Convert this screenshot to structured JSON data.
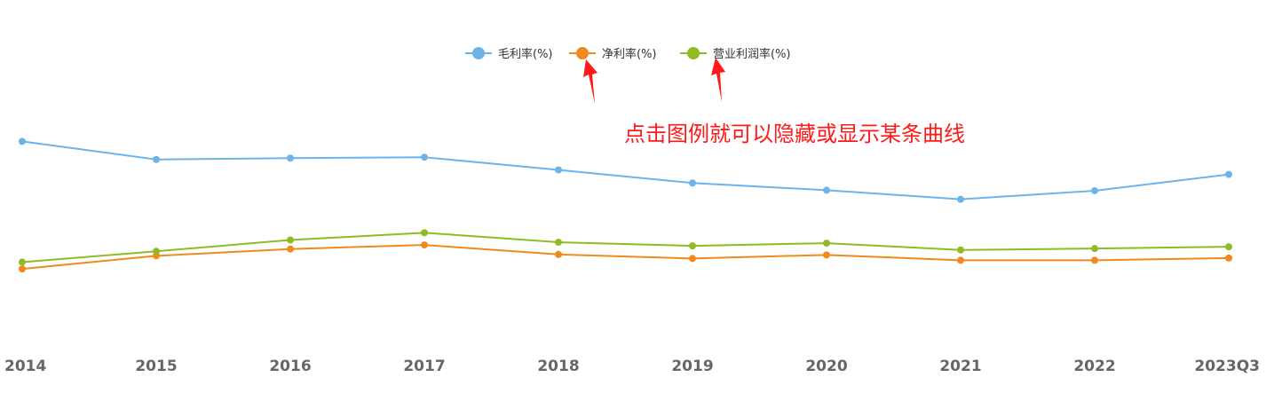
{
  "chart_data": {
    "type": "line",
    "categories": [
      "2014",
      "2015",
      "2016",
      "2017",
      "2018",
      "2019",
      "2020",
      "2021",
      "2022",
      "2023Q3"
    ],
    "series": [
      {
        "name": "毛利率(%)",
        "color": "#6cb4ea",
        "values": [
          42.5,
          38.5,
          38.8,
          39.0,
          36.2,
          33.3,
          31.7,
          29.7,
          31.6,
          35.2
        ]
      },
      {
        "name": "净利率(%)",
        "color": "#f08a1e",
        "values": [
          14.3,
          17.2,
          18.7,
          19.6,
          17.5,
          16.6,
          17.4,
          16.2,
          16.2,
          16.7
        ]
      },
      {
        "name": "营业利润率(%)",
        "color": "#8fbc24",
        "values": [
          15.8,
          18.2,
          20.7,
          22.3,
          20.2,
          19.4,
          20.0,
          18.5,
          18.8,
          19.2
        ]
      }
    ],
    "ylim": [
      0,
      62
    ],
    "grid": false,
    "legend_position": "top-center",
    "annotation": "点击图例就可以隐藏或显示某条曲线"
  }
}
